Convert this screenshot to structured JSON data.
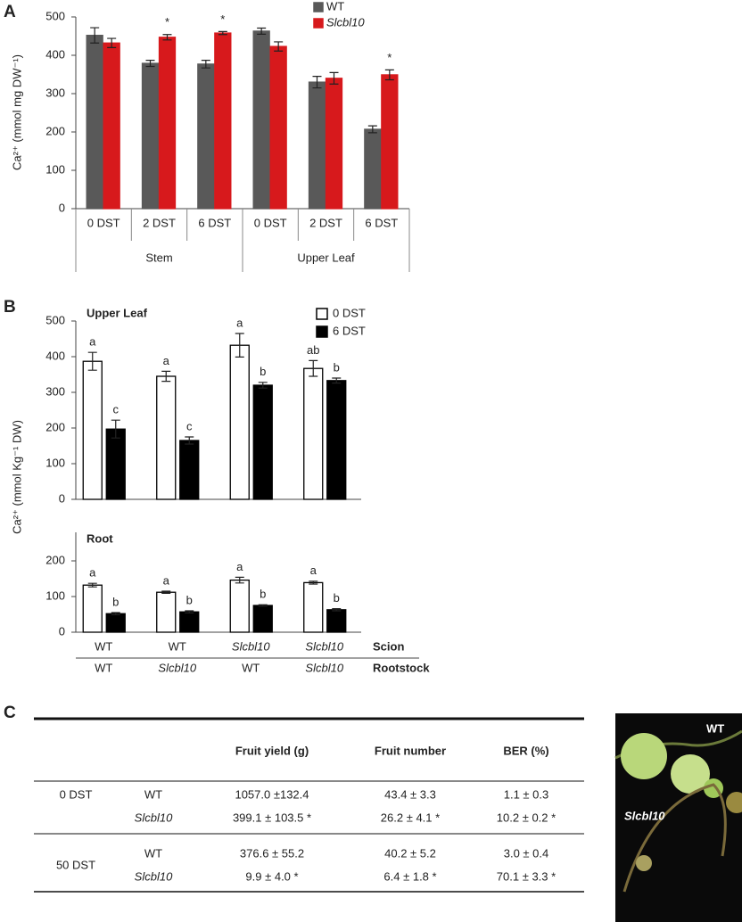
{
  "panels": [
    "A",
    "B",
    "C"
  ],
  "chart_data": [
    {
      "type": "bar",
      "ylabel": "Ca²⁺ (mmol mg DW⁻¹)",
      "ylim": [
        0,
        500
      ],
      "yticks": [
        0,
        100,
        200,
        300,
        400,
        500
      ],
      "groups": [
        {
          "name": "Stem",
          "categories": [
            "0 DST",
            "2 DST",
            "6 DST"
          ]
        },
        {
          "name": "Upper Leaf",
          "categories": [
            "0 DST",
            "2 DST",
            "6 DST"
          ]
        }
      ],
      "series": [
        {
          "name": "WT",
          "color": "#595959",
          "values": [
            452,
            379,
            377,
            463,
            330,
            207
          ],
          "errors": [
            20,
            8,
            10,
            8,
            15,
            9
          ]
        },
        {
          "name": "Slcbl10",
          "color": "#d7191c",
          "italic": true,
          "values": [
            432,
            447,
            458,
            423,
            340,
            349
          ],
          "errors": [
            12,
            7,
            4,
            12,
            15,
            13
          ],
          "annotations": [
            null,
            "*",
            "*",
            null,
            null,
            "*"
          ]
        }
      ]
    },
    {
      "type": "bar",
      "title": "Upper Leaf",
      "ylabel": "Ca²⁺ (mmol Kg⁻¹ DW)",
      "ylim": [
        0,
        500
      ],
      "yticks": [
        0,
        100,
        200,
        300,
        400,
        500
      ],
      "series": [
        {
          "name": "0 DST",
          "color": "#ffffff",
          "edgecolor": "#000000",
          "values": [
            387,
            345,
            432,
            367
          ],
          "errors": [
            25,
            14,
            33,
            22
          ],
          "annotations": [
            "a",
            "a",
            "a",
            "ab"
          ]
        },
        {
          "name": "6 DST",
          "color": "#000000",
          "values": [
            197,
            165,
            320,
            333
          ],
          "errors": [
            25,
            10,
            8,
            7
          ],
          "annotations": [
            "c",
            "c",
            "b",
            "b"
          ]
        }
      ]
    },
    {
      "type": "bar",
      "title": "Root",
      "ylim": [
        0,
        280
      ],
      "yticks": [
        0,
        100,
        200
      ],
      "series": [
        {
          "color": "#ffffff",
          "edgecolor": "#000000",
          "values": [
            132,
            112,
            146,
            139
          ],
          "errors": [
            5,
            3,
            8,
            4
          ],
          "annotations": [
            "a",
            "a",
            "a",
            "a"
          ]
        },
        {
          "color": "#000000",
          "values": [
            52,
            57,
            75,
            63
          ],
          "errors": [
            3,
            3,
            2,
            3
          ],
          "annotations": [
            "b",
            "b",
            "b",
            "b"
          ]
        }
      ],
      "category_rows": [
        {
          "name": "Scion",
          "labels": [
            "WT",
            "WT",
            "Slcbl10",
            "Slcbl10"
          ],
          "italic": [
            false,
            false,
            true,
            true
          ]
        },
        {
          "name": "Rootstock",
          "labels": [
            "WT",
            "Slcbl10",
            "WT",
            "Slcbl10"
          ],
          "italic": [
            false,
            true,
            false,
            true
          ]
        }
      ]
    }
  ],
  "table": {
    "columns": [
      "Fruit yield (g)",
      "Fruit number",
      "BER (%)"
    ],
    "groups": [
      {
        "condition": "0 DST",
        "rows": [
          {
            "genotype": "WT",
            "cells": [
              "1057.0 ±132.4",
              "43.4 ± 3.3",
              "1.1 ± 0.3"
            ]
          },
          {
            "genotype": "Slcbl10",
            "italic": true,
            "cells": [
              "399.1 ± 103.5 *",
              "26.2 ± 4.1 *",
              "10.2 ± 0.2 *"
            ]
          }
        ]
      },
      {
        "condition": "50 DST",
        "rows": [
          {
            "genotype": "WT",
            "cells": [
              "376.6  ± 55.2",
              "40.2 ± 5.2",
              "3.0 ± 0.4"
            ]
          },
          {
            "genotype": "Slcbl10",
            "italic": true,
            "cells": [
              "9.9 ± 4.0 *",
              "6.4 ± 1.8 *",
              "70.1 ± 3.3 *"
            ]
          }
        ]
      }
    ]
  },
  "photo": {
    "labels": [
      {
        "text": "WT"
      },
      {
        "text": "Slcbl10",
        "italic": true
      }
    ]
  }
}
